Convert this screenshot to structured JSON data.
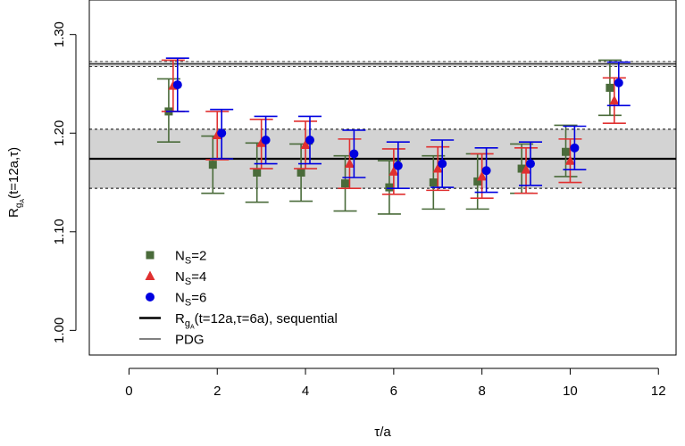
{
  "chart_data": {
    "type": "scatter",
    "xlabel": "τ/a",
    "ylabel": {
      "main": "R",
      "sub1": "g",
      "sub2": "A",
      "rest": "(t=12a,τ)"
    },
    "xlim": [
      -0.9,
      12.4
    ],
    "ylim": [
      0.975,
      1.335
    ],
    "xticks": [
      0,
      2,
      4,
      6,
      8,
      10,
      12
    ],
    "yticks": [
      1.0,
      1.1,
      1.2,
      1.3
    ],
    "xtick_labels": [
      "0",
      "2",
      "4",
      "6",
      "8",
      "10",
      "12"
    ],
    "ytick_labels": [
      "1.00",
      "1.10",
      "1.20",
      "1.30"
    ],
    "grid": false,
    "legend_placement": "bottom-left",
    "sequential_band": {
      "center": 1.174,
      "lower": 1.144,
      "upper": 1.204,
      "color": "#d3d3d3"
    },
    "pdg_band": {
      "center": 1.2701,
      "lower": 1.2676,
      "upper": 1.2726
    },
    "series": [
      {
        "name": "N_S=2",
        "marker": "square",
        "color": "#4a6b3a",
        "x": [
          1,
          2,
          3,
          4,
          5,
          6,
          7,
          8,
          9,
          10,
          11
        ],
        "y": [
          1.222,
          1.168,
          1.16,
          1.16,
          1.149,
          1.145,
          1.15,
          1.151,
          1.164,
          1.181,
          1.246
        ],
        "err_lo": [
          0.031,
          0.029,
          0.03,
          0.029,
          0.028,
          0.027,
          0.027,
          0.028,
          0.025,
          0.025,
          0.028
        ],
        "err_hi": [
          0.033,
          0.029,
          0.03,
          0.029,
          0.028,
          0.027,
          0.027,
          0.028,
          0.025,
          0.027,
          0.028
        ]
      },
      {
        "name": "N_S=4",
        "marker": "triangle",
        "color": "#e03030",
        "x": [
          1,
          2,
          3,
          4,
          5,
          6,
          7,
          8,
          9,
          10,
          11
        ],
        "y": [
          1.248,
          1.198,
          1.19,
          1.188,
          1.169,
          1.161,
          1.164,
          1.156,
          1.163,
          1.172,
          1.233
        ],
        "err_lo": [
          0.026,
          0.025,
          0.026,
          0.024,
          0.025,
          0.023,
          0.022,
          0.022,
          0.024,
          0.022,
          0.023
        ],
        "err_hi": [
          0.026,
          0.024,
          0.024,
          0.024,
          0.025,
          0.023,
          0.022,
          0.023,
          0.022,
          0.022,
          0.023
        ]
      },
      {
        "name": "N_S=6",
        "marker": "circle",
        "color": "#0000e0",
        "x": [
          1,
          2,
          3,
          4,
          5,
          6,
          7,
          8,
          9,
          10,
          11
        ],
        "y": [
          1.249,
          1.2,
          1.193,
          1.193,
          1.179,
          1.167,
          1.169,
          1.162,
          1.169,
          1.185,
          1.251
        ],
        "err_lo": [
          0.027,
          0.026,
          0.024,
          0.024,
          0.024,
          0.023,
          0.024,
          0.022,
          0.022,
          0.022,
          0.023
        ],
        "err_hi": [
          0.027,
          0.024,
          0.024,
          0.024,
          0.024,
          0.024,
          0.024,
          0.023,
          0.022,
          0.022,
          0.021
        ]
      }
    ],
    "legend": [
      {
        "kind": "square",
        "color": "#4a6b3a",
        "label": {
          "main": "N",
          "sub": "S",
          "rest": "=2"
        }
      },
      {
        "kind": "triangle",
        "color": "#e03030",
        "label": {
          "main": "N",
          "sub": "S",
          "rest": "=4"
        }
      },
      {
        "kind": "circle",
        "color": "#0000e0",
        "label": {
          "main": "N",
          "sub": "S",
          "rest": "=6"
        }
      },
      {
        "kind": "thick-line",
        "color": "#000000",
        "label": {
          "main": "R",
          "sub": "g",
          "subsub": "A",
          "rest": "(t=12a,τ=6a), sequential"
        }
      },
      {
        "kind": "thin-line",
        "color": "#000000",
        "label": {
          "main": "",
          "sub": "",
          "rest": "PDG"
        }
      }
    ]
  }
}
